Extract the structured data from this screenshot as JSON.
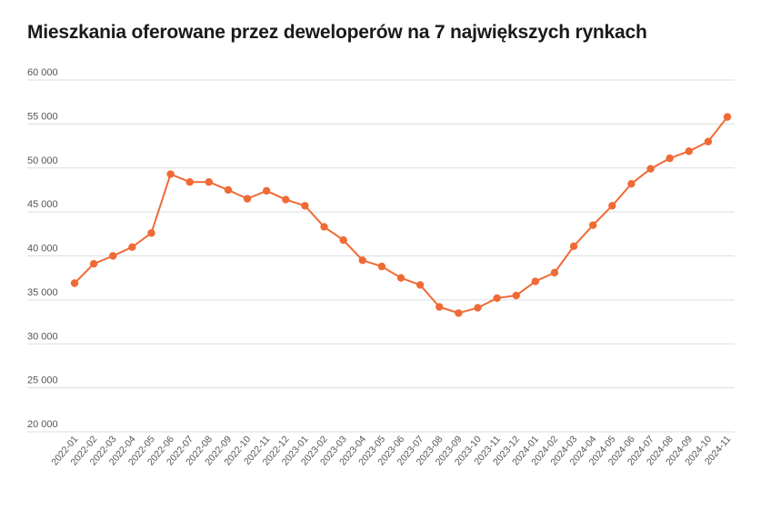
{
  "chart_data": {
    "type": "line",
    "title": "Mieszkania oferowane przez deweloperów na 7 największych rynkach",
    "xlabel": "",
    "ylabel": "",
    "ylim": [
      20000,
      60000
    ],
    "yticks": [
      20000,
      25000,
      30000,
      35000,
      40000,
      45000,
      50000,
      55000,
      60000
    ],
    "ytick_labels": [
      "20 000",
      "25 000",
      "30 000",
      "35 000",
      "40 000",
      "45 000",
      "50 000",
      "55 000",
      "60 000"
    ],
    "grid": true,
    "legend": "none",
    "categories": [
      "2022-01",
      "2022-02",
      "2022-03",
      "2022-04",
      "2022-05",
      "2022-06",
      "2022-07",
      "2022-08",
      "2022-09",
      "2022-10",
      "2022-11",
      "2022-12",
      "2023-01",
      "2023-02",
      "2023-03",
      "2023-04",
      "2023-05",
      "2023-06",
      "2023-07",
      "2023-08",
      "2023-09",
      "2023-10",
      "2023-11",
      "2023-12",
      "2024-01",
      "2024-02",
      "2024-03",
      "2024-04",
      "2024-05",
      "2024-06",
      "2024-07",
      "2024-08",
      "2024-09",
      "2024-10",
      "2024-11"
    ],
    "series": [
      {
        "values": [
          36900,
          39100,
          40000,
          41000,
          42600,
          49300,
          48400,
          48400,
          47500,
          46500,
          47400,
          46400,
          45700,
          43300,
          41800,
          39500,
          38800,
          37500,
          36700,
          34200,
          33500,
          34100,
          35200,
          35500,
          37100,
          38100,
          41100,
          43500,
          45700,
          48200,
          49900,
          51100,
          51900,
          53000,
          55800
        ],
        "color": "#f06a35"
      }
    ]
  }
}
